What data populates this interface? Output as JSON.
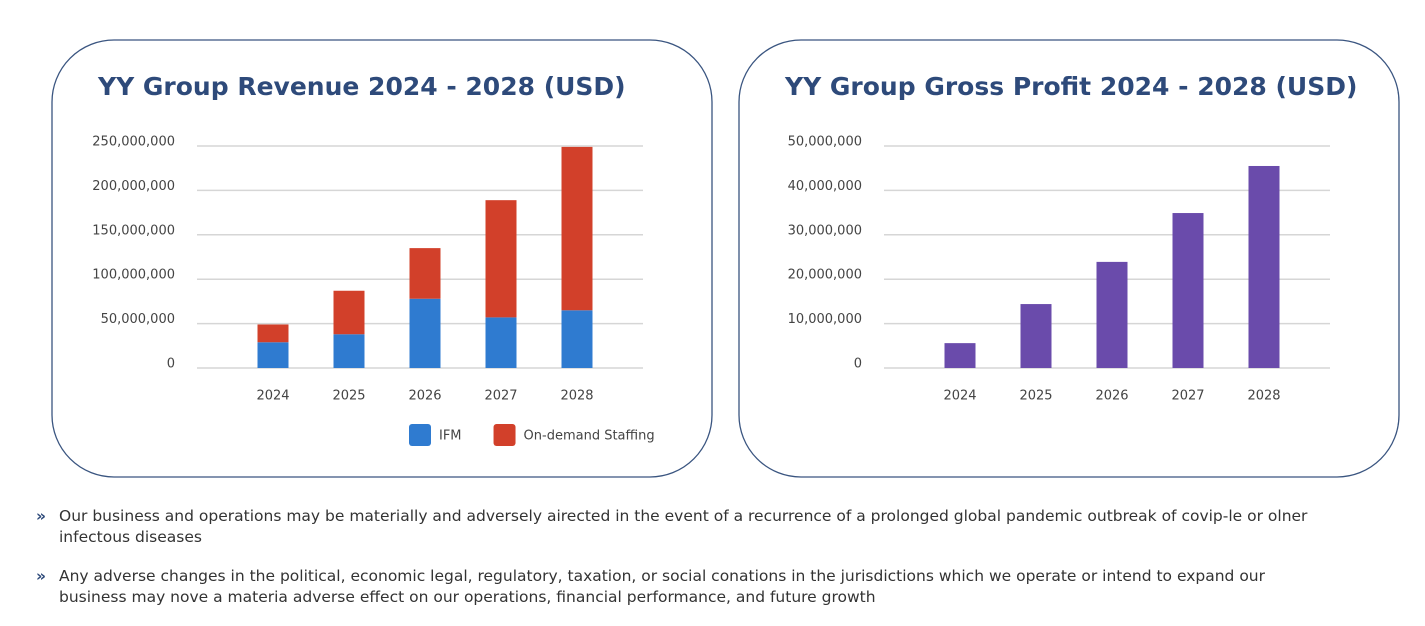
{
  "chart_data": [
    {
      "type": "bar",
      "stacked": true,
      "title": "YY Group Revenue 2024 - 2028 (USD)",
      "categories": [
        "2024",
        "2025",
        "2026",
        "2027",
        "2028"
      ],
      "series": [
        {
          "name": "IFM",
          "color": "#2f7bd0",
          "values": [
            29000000,
            38000000,
            78000000,
            57000000,
            65000000
          ]
        },
        {
          "name": "On-demand Staffing",
          "color": "#d2402a",
          "values": [
            20000000,
            49000000,
            57000000,
            132000000,
            184000000
          ]
        }
      ],
      "ylim": [
        0,
        250000000
      ],
      "yticks": [
        0,
        {
          "value": 50000000,
          "label": "50,000,000"
        },
        {
          "value": 100000000,
          "label": "100,000,000"
        },
        {
          "value": 150000000,
          "label": "150,000,000"
        },
        {
          "value": 200000000,
          "label": "200,000,000"
        },
        {
          "value": 250000000,
          "label": "250,000,000"
        }
      ],
      "grid": true,
      "legend": "bottom"
    },
    {
      "type": "bar",
      "title": "YY Group Gross Profit 2024 - 2028 (USD)",
      "categories": [
        "2024",
        "2025",
        "2026",
        "2027",
        "2028"
      ],
      "values": [
        5600000,
        14400000,
        23900000,
        34900000,
        45500000
      ],
      "color": "#6a4bab",
      "ylim": [
        0,
        50000000
      ],
      "yticks": [
        0,
        {
          "value": 10000000,
          "label": "10,000,000"
        },
        {
          "value": 20000000,
          "label": "20,000,000"
        },
        {
          "value": 30000000,
          "label": "30,000,000"
        },
        {
          "value": 40000000,
          "label": "40,000,000"
        },
        {
          "value": 50000000,
          "label": "50,000,000"
        }
      ],
      "grid": true
    }
  ],
  "bullets": [
    "Our business and operations may be materially and adversely airected in the event of a recurrence of a prolonged global pandemic outbreak of covip-le or olner infectous diseases",
    "Any adverse changes in the political, economic legal, regulatory, taxation, or social conations in the jurisdictions which we operate or intend to expand our business may nove a materia adverse effect on our operations, financial performance, and future growth"
  ]
}
